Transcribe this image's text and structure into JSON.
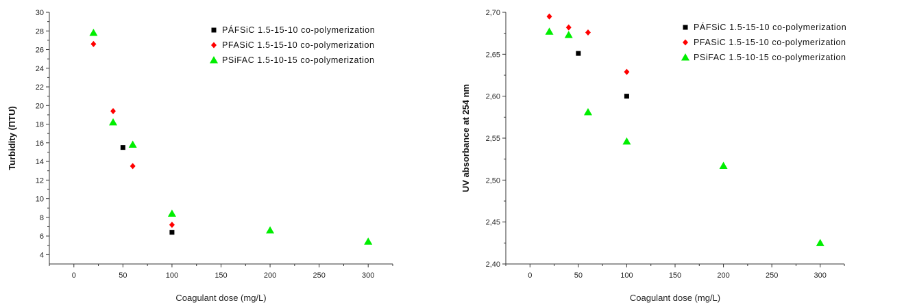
{
  "series_styles": [
    {
      "marker": "square",
      "color": "#000000"
    },
    {
      "marker": "diamond",
      "color": "#ff0000"
    },
    {
      "marker": "triangle",
      "color": "#00ee00"
    }
  ],
  "chart_data": [
    {
      "type": "scatter",
      "xlabel": "Coagulant dose (mg/L)",
      "ylabel": "Turbidity (ПТU)",
      "xlim": [
        -25,
        325
      ],
      "ylim": [
        3,
        30
      ],
      "xticks": [
        0,
        50,
        100,
        150,
        200,
        250,
        300
      ],
      "xtick_labels": [
        "0",
        "50",
        "100",
        "150",
        "200",
        "250",
        "300"
      ],
      "yticks": [
        4,
        6,
        8,
        10,
        12,
        14,
        16,
        18,
        20,
        22,
        24,
        26,
        28,
        30
      ],
      "ytick_labels": [
        "4",
        "6",
        "8",
        "10",
        "12",
        "14",
        "16",
        "18",
        "20",
        "22",
        "24",
        "26",
        "28",
        "30"
      ],
      "legend_position": "top-right",
      "series": [
        {
          "name": "PÁFSiC 1.5-15-10 co-polymerization",
          "x": [
            50,
            100
          ],
          "y": [
            15.5,
            6.4
          ]
        },
        {
          "name": "PFASiC 1.5-15-10 co-polymerization",
          "x": [
            20,
            40,
            60,
            100
          ],
          "y": [
            26.6,
            19.4,
            13.5,
            7.2
          ]
        },
        {
          "name": "PSiFAC 1.5-10-15 co-polymerization",
          "x": [
            20,
            40,
            60,
            100,
            200,
            300
          ],
          "y": [
            27.8,
            18.2,
            15.8,
            8.4,
            6.6,
            5.4
          ]
        }
      ]
    },
    {
      "type": "scatter",
      "xlabel": "Coagulant dose (mg/L)",
      "ylabel": "UV absorbance at 254 nm",
      "xlim": [
        -25,
        325
      ],
      "ylim": [
        2.4,
        2.7
      ],
      "xticks": [
        0,
        50,
        100,
        150,
        200,
        250,
        300
      ],
      "xtick_labels": [
        "0",
        "50",
        "100",
        "150",
        "200",
        "250",
        "300"
      ],
      "yticks": [
        2.4,
        2.45,
        2.5,
        2.55,
        2.6,
        2.65,
        2.7
      ],
      "ytick_labels": [
        "2,40",
        "2,45",
        "2,50",
        "2,55",
        "2,60",
        "2,65",
        "2,70"
      ],
      "legend_position": "top-right",
      "series": [
        {
          "name": "PÁFSiC 1.5-15-10 co-polymerization",
          "x": [
            50,
            100
          ],
          "y": [
            2.651,
            2.6
          ]
        },
        {
          "name": "PFASiC 1.5-15-10 co-polymerization",
          "x": [
            20,
            40,
            60,
            100
          ],
          "y": [
            2.695,
            2.682,
            2.676,
            2.629
          ]
        },
        {
          "name": "PSiFAC 1.5-10-15 co-polymerization",
          "x": [
            20,
            40,
            60,
            100,
            200,
            300
          ],
          "y": [
            2.677,
            2.673,
            2.581,
            2.546,
            2.517,
            2.425
          ]
        }
      ]
    }
  ]
}
